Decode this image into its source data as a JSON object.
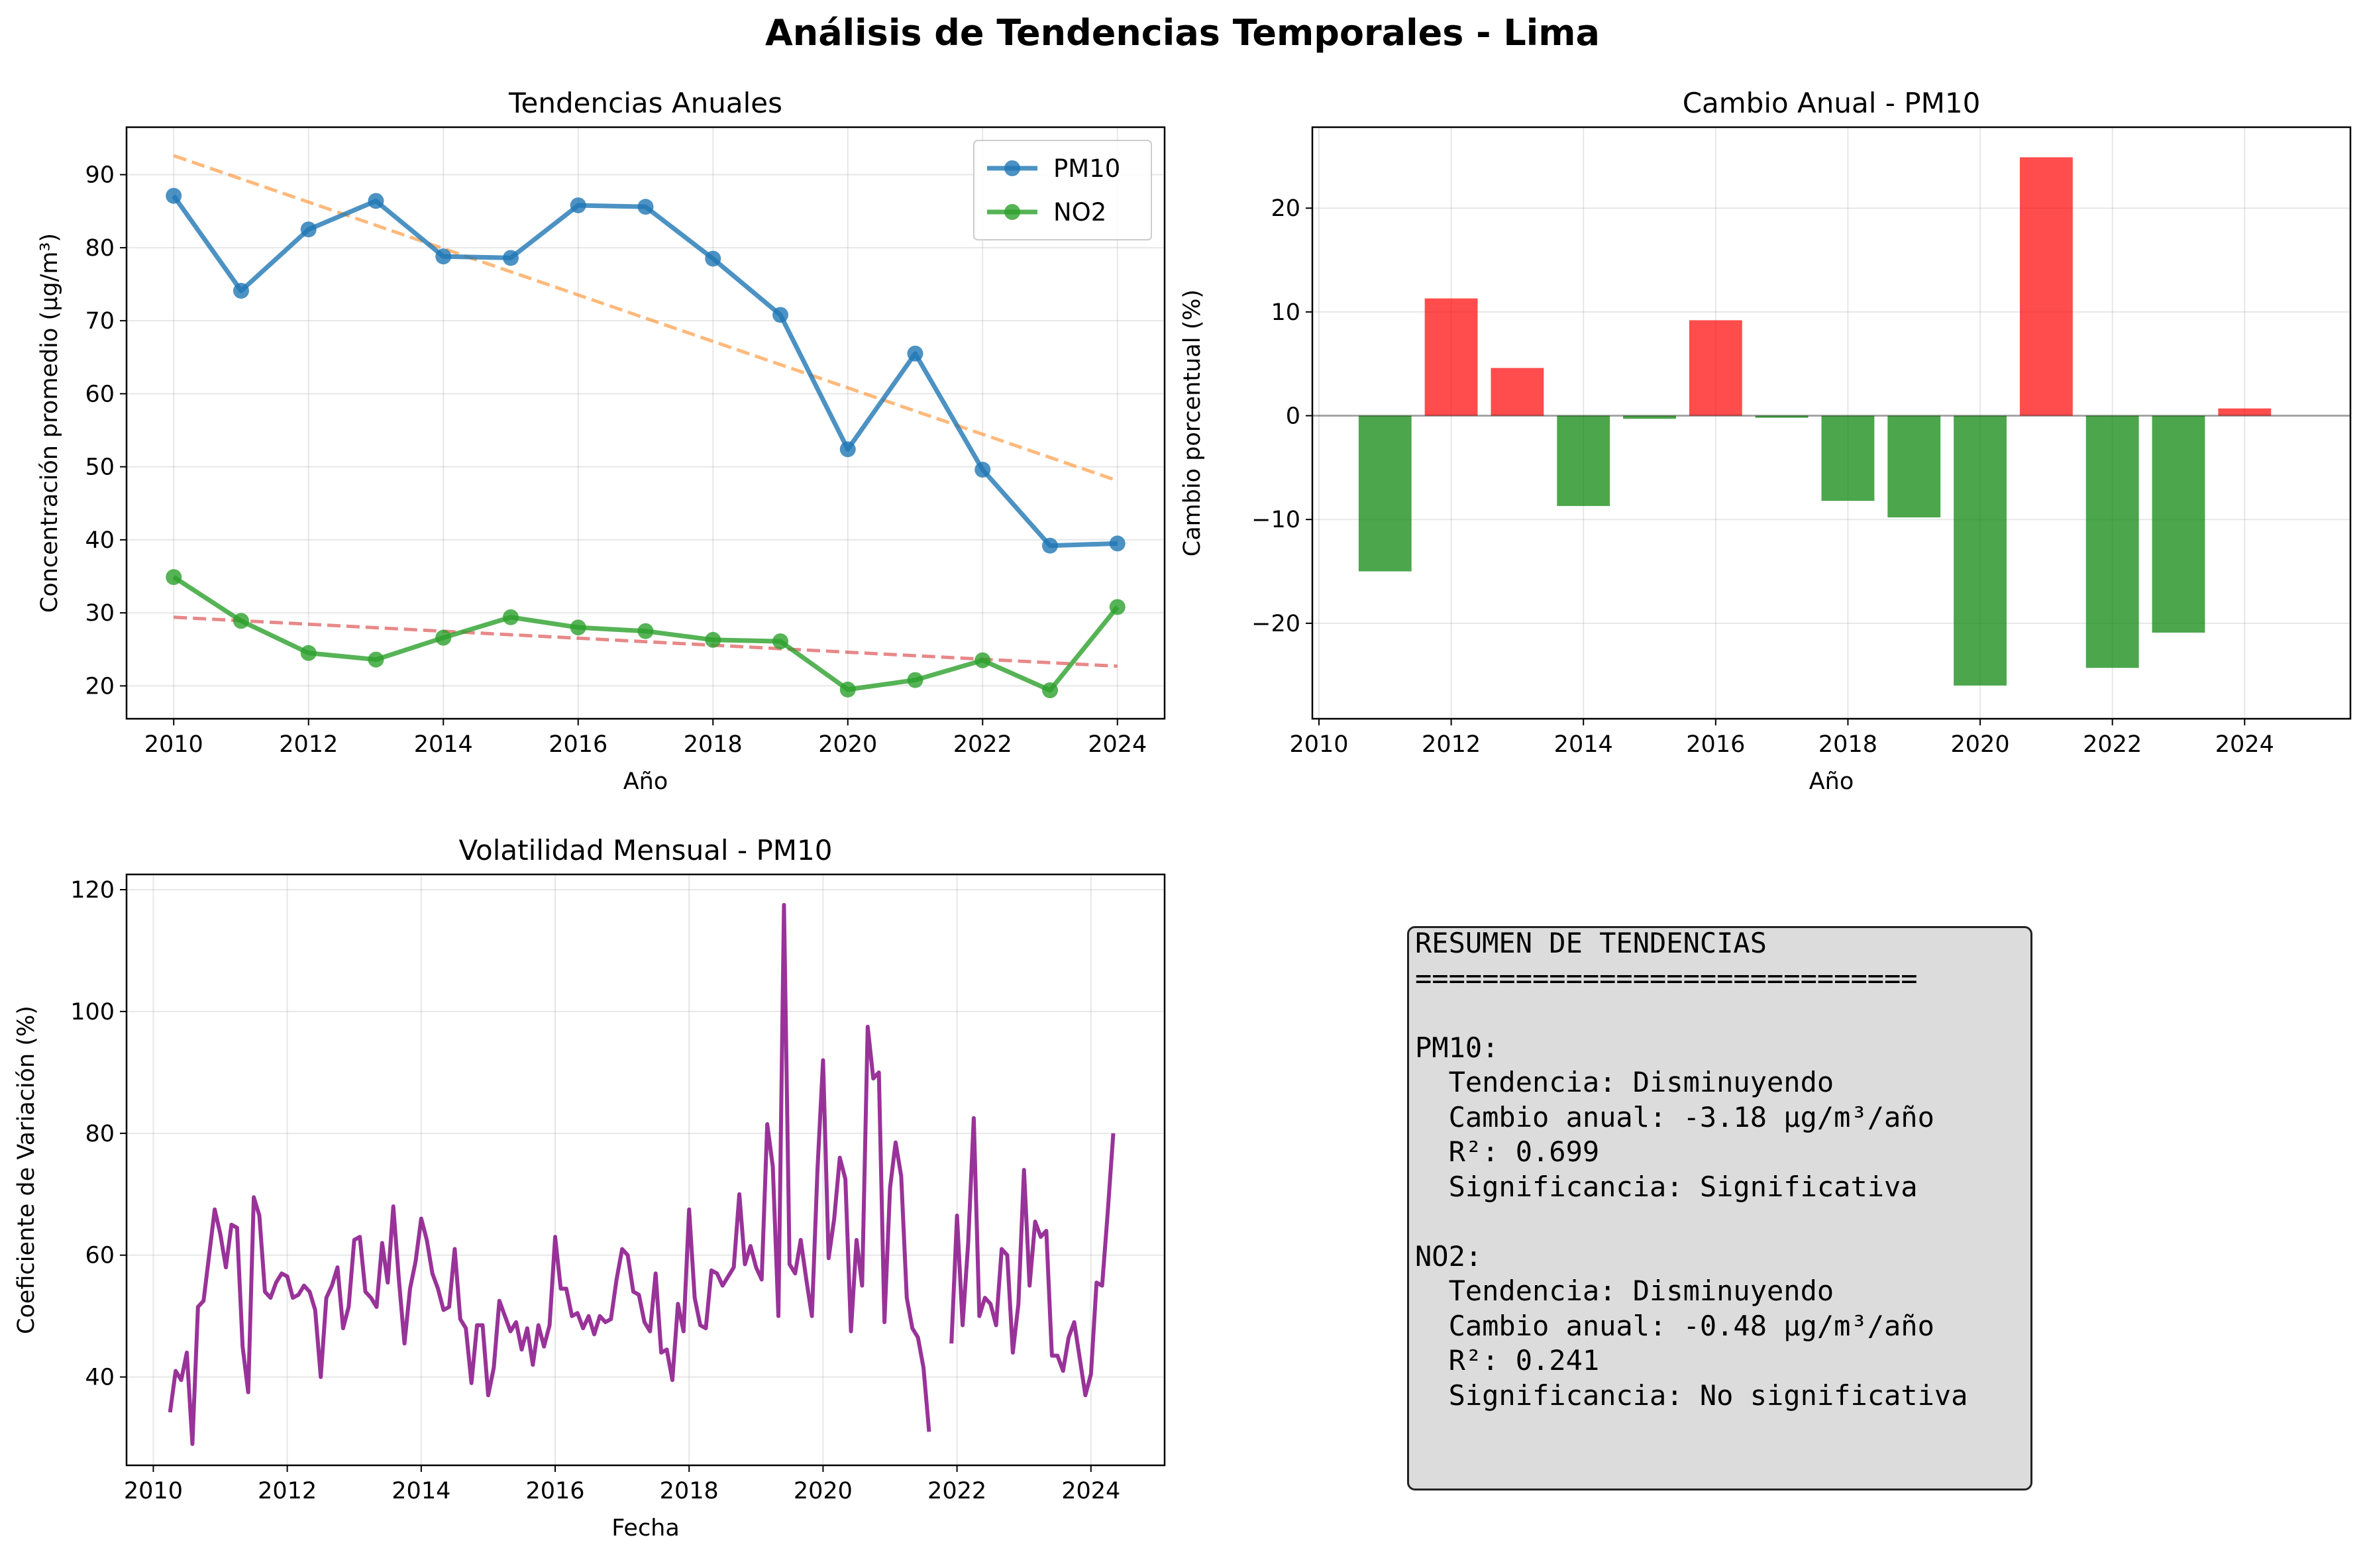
{
  "figure": {
    "suptitle": "Análisis de Tendencias Temporales - Lima"
  },
  "colors": {
    "pm10": "#1f77b4",
    "no2": "#2ca02c",
    "pm10_trend": "#ff7f0e",
    "no2_trend": "#d62728",
    "bar_increase": "#ff0000",
    "bar_decrease": "#008000",
    "volatility": "#800080",
    "summary_bg": "#dcdcdc"
  },
  "chart_data": [
    {
      "type": "line",
      "title": "Tendencias Anuales",
      "xlabel": "Año",
      "ylabel": "Concentración promedio (μg/m³)",
      "x": [
        2010,
        2011,
        2012,
        2013,
        2014,
        2015,
        2016,
        2017,
        2018,
        2019,
        2020,
        2021,
        2022,
        2023,
        2024
      ],
      "xlim": [
        2009.3,
        2024.7
      ],
      "ylim": [
        15.5,
        96.5
      ],
      "xticks": [
        2010,
        2012,
        2014,
        2016,
        2018,
        2020,
        2022,
        2024
      ],
      "yticks": [
        20,
        30,
        40,
        50,
        60,
        70,
        80,
        90
      ],
      "grid": true,
      "legend": "upper right",
      "series": [
        {
          "name": "PM10",
          "values": [
            87.1,
            74.1,
            82.5,
            86.4,
            78.8,
            78.6,
            85.8,
            85.6,
            78.5,
            70.8,
            52.4,
            65.5,
            49.6,
            39.2,
            39.5
          ]
        },
        {
          "name": "NO2",
          "values": [
            34.9,
            28.9,
            24.5,
            23.6,
            26.6,
            29.4,
            28.0,
            27.5,
            26.3,
            26.1,
            19.5,
            20.8,
            23.5,
            19.4,
            30.8
          ]
        }
      ],
      "trendlines": [
        {
          "series": "PM10",
          "x": [
            2010,
            2024
          ],
          "y": [
            92.6,
            48.1
          ]
        },
        {
          "series": "NO2",
          "x": [
            2010,
            2024
          ],
          "y": [
            29.4,
            22.7
          ]
        }
      ]
    },
    {
      "type": "bar",
      "title": "Cambio Anual - PM10",
      "xlabel": "Año",
      "ylabel": "Cambio porcentual (%)",
      "x": [
        2011,
        2012,
        2013,
        2014,
        2015,
        2016,
        2017,
        2018,
        2019,
        2020,
        2021,
        2022,
        2023,
        2024
      ],
      "values": [
        -15.0,
        11.3,
        4.6,
        -8.7,
        -0.3,
        9.2,
        -0.2,
        -8.2,
        -9.8,
        -26.0,
        24.9,
        -24.3,
        -20.9,
        0.7
      ],
      "xlim": [
        2009.9,
        2025.6
      ],
      "ylim": [
        -29.2,
        27.8
      ],
      "xticks": [
        2010,
        2012,
        2014,
        2016,
        2018,
        2020,
        2022,
        2024
      ],
      "yticks": [
        -20,
        -10,
        0,
        10,
        20
      ],
      "grid": true
    },
    {
      "type": "line",
      "title": "Volatilidad Mensual - PM10",
      "xlabel": "Fecha",
      "ylabel": "Coeficiente de Variación (%)",
      "xlim": [
        2009.6,
        2025.1
      ],
      "ylim": [
        25.5,
        122.5
      ],
      "xticks": [
        2010,
        2012,
        2014,
        2016,
        2018,
        2020,
        2022,
        2024
      ],
      "yticks": [
        40,
        60,
        80,
        100,
        120
      ],
      "grid": true,
      "segments": [
        {
          "x_start": 2010.25,
          "x_step": 0.0833333,
          "values": [
            34.2,
            41.0,
            39.5,
            44.0,
            29.0,
            51.5,
            52.5,
            60.0,
            67.5,
            63.5,
            58.0,
            65.0,
            64.5,
            45.0,
            37.5,
            69.5,
            66.5,
            54.0,
            53.0,
            55.5,
            57.0,
            56.5,
            53.0,
            53.5,
            55.0,
            54.0,
            51.0,
            40.0,
            53.0,
            55.0,
            58.0,
            48.0,
            51.5,
            62.5,
            63.0,
            54.0,
            53.0,
            51.5,
            62.0,
            55.5,
            68.0,
            56.0,
            45.5,
            54.5,
            59.0,
            66.0,
            62.5,
            57.0,
            54.5,
            51.0,
            51.5,
            61.0,
            49.5,
            48.0,
            39.0,
            48.5,
            48.5,
            37.0,
            41.5,
            52.5,
            50.0,
            47.5,
            49.0,
            44.5,
            48.0,
            42.0,
            48.5,
            45.0,
            48.5,
            63.0,
            54.5,
            54.5,
            50.0,
            50.5,
            48.0,
            50.0,
            47.0,
            50.0,
            49.0,
            49.5,
            56.0,
            61.0,
            60.0,
            54.0,
            53.5,
            49.0,
            47.5,
            57.0,
            44.0,
            44.5,
            39.5,
            52.0,
            47.5,
            67.5,
            53.0,
            48.5,
            48.0,
            57.5,
            57.0,
            55.0,
            56.5,
            58.0,
            70.0,
            58.5,
            61.5,
            58.0,
            56.0,
            81.5,
            74.5,
            50.0,
            117.5,
            58.5,
            57.0,
            62.5,
            56.0,
            50.0,
            74.0,
            92.0,
            59.5,
            66.0,
            76.0,
            72.5,
            47.5,
            62.5,
            55.0,
            97.5,
            89.0,
            90.0,
            49.0,
            71.0,
            78.5,
            73.0,
            53.0,
            48.0,
            46.5,
            41.5,
            31.0
          ]
        },
        {
          "x_start": 2021.917,
          "x_step": 0.0833333,
          "values": [
            45.5,
            66.5,
            48.5,
            62.0,
            82.5,
            50.0,
            53.0,
            52.0,
            48.5,
            61.0,
            60.0,
            44.0,
            52.0,
            74.0,
            55.0,
            65.5,
            63.0,
            64.0,
            43.5,
            43.5,
            41.0,
            46.5,
            49.0,
            43.0,
            37.0,
            40.5,
            55.5,
            55.0,
            67.0,
            80.0
          ]
        }
      ]
    }
  ],
  "summary": {
    "lines": [
      "RESUMEN DE TENDENCIAS",
      "==============================",
      "",
      "PM10:",
      "  Tendencia: Disminuyendo",
      "  Cambio anual: -3.18 μg/m³/año",
      "  R²: 0.699",
      "  Significancia: Significativa",
      "",
      "NO2:",
      "  Tendencia: Disminuyendo",
      "  Cambio anual: -0.48 μg/m³/año",
      "  R²: 0.241",
      "  Significancia: No significativa"
    ]
  }
}
